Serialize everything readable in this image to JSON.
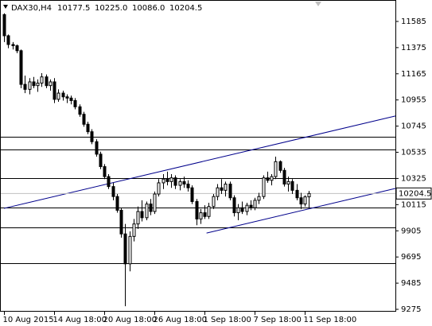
{
  "chart_data": {
    "type": "candlestick",
    "symbol": "DAX30,H4",
    "quote": {
      "values": [
        10177.5,
        10225,
        10086,
        10204.5
      ],
      "value_labels": [
        "10177.5",
        "10225.0",
        "10086.0",
        "10204.5"
      ]
    },
    "categories": [
      "10 Aug 2015",
      null,
      null,
      null,
      null,
      null,
      null,
      null,
      null,
      null,
      null,
      null,
      "14 Aug 18:00",
      null,
      null,
      null,
      null,
      null,
      null,
      null,
      null,
      null,
      null,
      null,
      "20 Aug 18:00",
      null,
      null,
      null,
      null,
      null,
      null,
      null,
      null,
      null,
      null,
      null,
      "26 Aug 18:00",
      null,
      null,
      null,
      null,
      null,
      null,
      null,
      null,
      null,
      null,
      null,
      "1 Sep 18:00",
      null,
      null,
      null,
      null,
      null,
      null,
      null,
      null,
      null,
      null,
      null,
      "7 Sep 18:00",
      null,
      null,
      null,
      null,
      null,
      null,
      null,
      null,
      null,
      null,
      null,
      "11 Sep 18:00",
      null
    ],
    "open": [
      11640,
      11470,
      11400,
      11390,
      11350,
      11080,
      11040,
      11100,
      11070,
      11090,
      11140,
      11070,
      11100,
      10960,
      11010,
      10980,
      10970,
      10950,
      10900,
      10840,
      10760,
      10700,
      10620,
      10520,
      10420,
      10340,
      10260,
      10180,
      10070,
      9880,
      9640,
      9860,
      9960,
      10060,
      10010,
      10120,
      10060,
      10200,
      10290,
      10320,
      10300,
      10330,
      10270,
      10300,
      10280,
      10250,
      10140,
      10000,
      10050,
      10020,
      10100,
      10180,
      10250,
      10230,
      10280,
      10170,
      10050,
      10090,
      10060,
      10110,
      10090,
      10150,
      10180,
      10330,
      10310,
      10340,
      10460,
      10390,
      10280,
      10300,
      10230,
      10170,
      10120,
      10177.5
    ],
    "high": [
      11650,
      11480,
      11420,
      11400,
      11360,
      11150,
      11130,
      11140,
      11120,
      11170,
      11160,
      11120,
      11130,
      11040,
      11030,
      11000,
      10990,
      10970,
      10920,
      10860,
      10780,
      10720,
      10640,
      10540,
      10440,
      10360,
      10290,
      10200,
      10090,
      9960,
      9900,
      10000,
      10100,
      10150,
      10140,
      10160,
      10220,
      10320,
      10360,
      10380,
      10360,
      10350,
      10320,
      10340,
      10310,
      10270,
      10160,
      10080,
      10110,
      10130,
      10200,
      10280,
      10320,
      10300,
      10300,
      10190,
      10120,
      10140,
      10130,
      10150,
      10170,
      10210,
      10350,
      10380,
      10360,
      10500,
      10470,
      10410,
      10340,
      10320,
      10280,
      10210,
      10190,
      10225
    ],
    "low": [
      11420,
      11370,
      11360,
      11330,
      11050,
      11010,
      11000,
      11050,
      11020,
      11060,
      11050,
      11030,
      10930,
      10940,
      10950,
      10930,
      10920,
      10880,
      10820,
      10740,
      10680,
      10600,
      10500,
      10400,
      10320,
      10240,
      10150,
      10050,
      9850,
      9300,
      9580,
      9820,
      9920,
      9980,
      9990,
      10030,
      10040,
      10180,
      10240,
      10270,
      10250,
      10240,
      10230,
      10250,
      10220,
      10120,
      9950,
      9960,
      10000,
      10000,
      10080,
      10150,
      10200,
      10180,
      10150,
      10020,
      9990,
      10040,
      10030,
      10070,
      10070,
      10120,
      10160,
      10290,
      10270,
      10320,
      10370,
      10260,
      10220,
      10200,
      10150,
      10080,
      10100,
      10086
    ],
    "close": [
      11470,
      11400,
      11390,
      11350,
      11080,
      11040,
      11100,
      11070,
      11090,
      11140,
      11070,
      11100,
      10960,
      11010,
      10980,
      10970,
      10950,
      10900,
      10840,
      10760,
      10700,
      10620,
      10520,
      10420,
      10340,
      10260,
      10180,
      10070,
      9880,
      9640,
      9860,
      9960,
      10060,
      10010,
      10120,
      10060,
      10200,
      10290,
      10320,
      10300,
      10330,
      10270,
      10300,
      10280,
      10250,
      10140,
      10000,
      10050,
      10020,
      10100,
      10180,
      10250,
      10230,
      10280,
      10170,
      10050,
      10090,
      10060,
      10110,
      10090,
      10150,
      10180,
      10330,
      10310,
      10340,
      10460,
      10390,
      10280,
      10300,
      10230,
      10170,
      10120,
      10177.5,
      10204.5
    ],
    "ylim": [
      9256,
      11757
    ],
    "yticks": [
      11585,
      11375,
      11165,
      10955,
      10745,
      10535,
      10325,
      10115,
      9905,
      9695,
      9485,
      9275
    ],
    "levels": [
      10660,
      10557,
      10328,
      10092,
      9932,
      9645
    ],
    "trend_lines": [
      {
        "x": [
          0,
          94
        ],
        "y": [
          10085,
          10826
        ],
        "color": "#00008b"
      },
      {
        "x": [
          48.5,
          94
        ],
        "y": [
          9887,
          10245
        ],
        "color": "#00008b"
      }
    ]
  }
}
